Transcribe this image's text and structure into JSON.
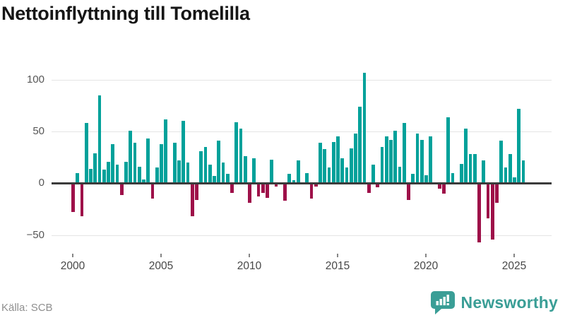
{
  "title": "Nettoinflyttning till Tomelilla",
  "source": "Källa: SCB",
  "branding": {
    "name": "Newsworthy",
    "icon": "newsworthy-speech-bubble-chart-icon",
    "color": "#3a9e96"
  },
  "chart_data": {
    "type": "bar",
    "title": "Nettoinflyttning till Tomelilla",
    "xlabel": "",
    "ylabel": "",
    "grid": "horizontal",
    "legend": "none",
    "ylim": [
      -75,
      120
    ],
    "y_ticks": [
      100,
      50,
      0,
      -50
    ],
    "y_tick_labels": [
      "100",
      "50",
      "0",
      "−50"
    ],
    "x_tick_labels": [
      "2000",
      "2005",
      "2010",
      "2015",
      "2020",
      "2025"
    ],
    "colors": {
      "positive": "#00a19a",
      "negative": "#9e1049"
    },
    "x": [
      "2000-Q1",
      "2000-Q2",
      "2000-Q3",
      "2000-Q4",
      "2001-Q1",
      "2001-Q2",
      "2001-Q3",
      "2001-Q4",
      "2002-Q1",
      "2002-Q2",
      "2002-Q3",
      "2002-Q4",
      "2003-Q1",
      "2003-Q2",
      "2003-Q3",
      "2003-Q4",
      "2004-Q1",
      "2004-Q2",
      "2004-Q3",
      "2004-Q4",
      "2005-Q1",
      "2005-Q2",
      "2005-Q3",
      "2005-Q4",
      "2006-Q1",
      "2006-Q2",
      "2006-Q3",
      "2006-Q4",
      "2007-Q1",
      "2007-Q2",
      "2007-Q3",
      "2007-Q4",
      "2008-Q1",
      "2008-Q2",
      "2008-Q3",
      "2008-Q4",
      "2009-Q1",
      "2009-Q2",
      "2009-Q3",
      "2009-Q4",
      "2010-Q1",
      "2010-Q2",
      "2010-Q3",
      "2010-Q4",
      "2011-Q1",
      "2011-Q2",
      "2011-Q3",
      "2011-Q4",
      "2012-Q1",
      "2012-Q2",
      "2012-Q3",
      "2012-Q4",
      "2013-Q1",
      "2013-Q2",
      "2013-Q3",
      "2013-Q4",
      "2014-Q1",
      "2014-Q2",
      "2014-Q3",
      "2014-Q4",
      "2015-Q1",
      "2015-Q2",
      "2015-Q3",
      "2015-Q4",
      "2016-Q1",
      "2016-Q2",
      "2016-Q3",
      "2016-Q4",
      "2017-Q1",
      "2017-Q2",
      "2017-Q3",
      "2017-Q4",
      "2018-Q1",
      "2018-Q2",
      "2018-Q3",
      "2018-Q4",
      "2019-Q1",
      "2019-Q2",
      "2019-Q3",
      "2019-Q4",
      "2020-Q1",
      "2020-Q2",
      "2020-Q3",
      "2020-Q4",
      "2021-Q1",
      "2021-Q2",
      "2021-Q3",
      "2021-Q4",
      "2022-Q1",
      "2022-Q2",
      "2022-Q3",
      "2022-Q4",
      "2023-Q1",
      "2023-Q2",
      "2023-Q3",
      "2023-Q4",
      "2024-Q1",
      "2024-Q2",
      "2024-Q3",
      "2024-Q4",
      "2025-Q1",
      "2025-Q2",
      "2025-Q3"
    ],
    "values": [
      -28,
      10,
      -32,
      58,
      14,
      29,
      85,
      13,
      21,
      38,
      18,
      -11,
      21,
      51,
      39,
      16,
      4,
      43,
      -15,
      15,
      38,
      62,
      0,
      39,
      22,
      60,
      20,
      -32,
      -16,
      31,
      35,
      18,
      7,
      41,
      20,
      9,
      -9,
      59,
      53,
      26,
      -19,
      24,
      -13,
      -9,
      -14,
      23,
      -3,
      0,
      -17,
      9,
      3,
      22,
      1,
      10,
      -15,
      -3,
      39,
      33,
      15,
      40,
      45,
      24,
      15,
      34,
      48,
      74,
      107,
      -9,
      18,
      -4,
      35,
      45,
      42,
      51,
      16,
      58,
      -16,
      9,
      48,
      42,
      8,
      45,
      0,
      -5,
      -10,
      64,
      10,
      0,
      19,
      53,
      28,
      28,
      -57,
      22,
      -34,
      -54,
      -19,
      41,
      15,
      28,
      6,
      72,
      22
    ]
  }
}
